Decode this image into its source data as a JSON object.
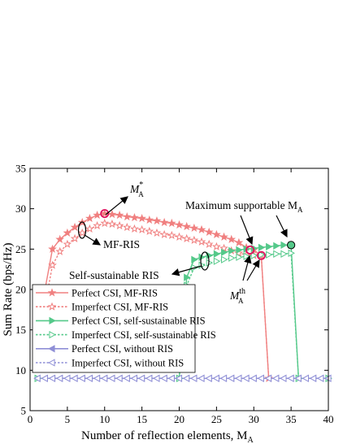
{
  "chart_data": {
    "type": "line",
    "xlabel": "Number of reflection elements, M",
    "xlabel_sub": "A",
    "ylabel": "Sum Rate (bps/Hz)",
    "xlim": [
      0,
      40
    ],
    "ylim": [
      5,
      35
    ],
    "xticks": [
      "0",
      "5",
      "10",
      "15",
      "20",
      "25",
      "30",
      "35",
      "40"
    ],
    "yticks": [
      "5",
      "10",
      "15",
      "20",
      "25",
      "30",
      "35"
    ],
    "legend_position": "left-middle",
    "series": [
      {
        "name": "Perfect CSI, MF-RIS",
        "color": "#f08080",
        "dash": false,
        "marker": "star",
        "points": [
          [
            1,
            13
          ],
          [
            2,
            20
          ],
          [
            3,
            25
          ],
          [
            4,
            26.2
          ],
          [
            5,
            27
          ],
          [
            6,
            27.7
          ],
          [
            7,
            28.3
          ],
          [
            8,
            28.8
          ],
          [
            9,
            29.2
          ],
          [
            10,
            29.4
          ],
          [
            11,
            29.3
          ],
          [
            12,
            29.2
          ],
          [
            13,
            29.0
          ],
          [
            14,
            28.9
          ],
          [
            15,
            28.8
          ],
          [
            16,
            28.6
          ],
          [
            17,
            28.5
          ],
          [
            18,
            28.3
          ],
          [
            19,
            28.2
          ],
          [
            20,
            28.0
          ],
          [
            21,
            27.8
          ],
          [
            22,
            27.6
          ],
          [
            23,
            27.4
          ],
          [
            24,
            27.1
          ],
          [
            25,
            26.8
          ],
          [
            26,
            26.5
          ],
          [
            27,
            26.2
          ],
          [
            28,
            25.8
          ],
          [
            29,
            25.2
          ],
          [
            30,
            24.9
          ],
          [
            31,
            24.2
          ],
          [
            32,
            9
          ]
        ]
      },
      {
        "name": "Imperfect CSI, MF-RIS",
        "color": "#f08080",
        "dash": true,
        "marker": "star-open",
        "points": [
          [
            1,
            12
          ],
          [
            2,
            18
          ],
          [
            3,
            23
          ],
          [
            4,
            24.7
          ],
          [
            5,
            25.6
          ],
          [
            6,
            26.3
          ],
          [
            7,
            27.0
          ],
          [
            8,
            27.5
          ],
          [
            9,
            27.9
          ],
          [
            10,
            28.2
          ],
          [
            11,
            28.1
          ],
          [
            12,
            27.9
          ],
          [
            13,
            27.7
          ],
          [
            14,
            27.5
          ],
          [
            15,
            27.4
          ],
          [
            16,
            27.2
          ],
          [
            17,
            27.0
          ],
          [
            18,
            26.8
          ],
          [
            19,
            26.7
          ],
          [
            20,
            26.5
          ],
          [
            21,
            26.3
          ],
          [
            22,
            26.1
          ],
          [
            23,
            25.9
          ],
          [
            24,
            25.6
          ],
          [
            25,
            25.3
          ],
          [
            26,
            25.1
          ],
          [
            27,
            24.8
          ],
          [
            28,
            24.5
          ],
          [
            29,
            24.3
          ],
          [
            30,
            24.2
          ],
          [
            31,
            24.2
          ],
          [
            32,
            9
          ]
        ]
      },
      {
        "name": "Perfect CSI, self-sustainable RIS",
        "color": "#55c98a",
        "dash": false,
        "marker": "triangle-right",
        "points": [
          [
            1,
            9
          ],
          [
            20,
            9
          ],
          [
            21,
            21.5
          ],
          [
            22,
            23.7
          ],
          [
            23,
            24.0
          ],
          [
            24,
            24.2
          ],
          [
            25,
            24.4
          ],
          [
            26,
            24.6
          ],
          [
            27,
            24.8
          ],
          [
            28,
            24.9
          ],
          [
            29,
            25.0
          ],
          [
            30,
            25.1
          ],
          [
            31,
            25.2
          ],
          [
            32,
            25.3
          ],
          [
            33,
            25.4
          ],
          [
            34,
            25.5
          ],
          [
            35,
            25.5
          ],
          [
            36,
            9
          ],
          [
            40,
            9
          ]
        ]
      },
      {
        "name": "Imperfect CSI, self-sustainable RIS",
        "color": "#55c98a",
        "dash": true,
        "marker": "triangle-right-open",
        "points": [
          [
            1,
            9
          ],
          [
            20,
            9
          ],
          [
            21,
            20.5
          ],
          [
            22,
            22.7
          ],
          [
            23,
            23.0
          ],
          [
            24,
            23.3
          ],
          [
            25,
            23.5
          ],
          [
            26,
            23.7
          ],
          [
            27,
            23.9
          ],
          [
            28,
            24.0
          ],
          [
            29,
            24.1
          ],
          [
            30,
            24.2
          ],
          [
            31,
            24.3
          ],
          [
            32,
            24.3
          ],
          [
            33,
            24.4
          ],
          [
            34,
            24.4
          ],
          [
            35,
            24.5
          ],
          [
            36,
            9
          ],
          [
            40,
            9
          ]
        ]
      },
      {
        "name": "Perfect CSI, without RIS",
        "color": "#8f8fd6",
        "dash": false,
        "marker": "triangle-left",
        "points": [
          [
            1,
            9
          ],
          [
            2,
            9
          ],
          [
            3,
            9
          ],
          [
            4,
            9
          ],
          [
            5,
            9
          ],
          [
            6,
            9
          ],
          [
            7,
            9
          ],
          [
            8,
            9
          ],
          [
            9,
            9
          ],
          [
            10,
            9
          ],
          [
            11,
            9
          ],
          [
            12,
            9
          ],
          [
            13,
            9
          ],
          [
            14,
            9
          ],
          [
            15,
            9
          ],
          [
            16,
            9
          ],
          [
            17,
            9
          ],
          [
            18,
            9
          ],
          [
            19,
            9
          ],
          [
            20,
            9
          ],
          [
            21,
            9
          ],
          [
            22,
            9
          ],
          [
            23,
            9
          ],
          [
            24,
            9
          ],
          [
            25,
            9
          ],
          [
            26,
            9
          ],
          [
            27,
            9
          ],
          [
            28,
            9
          ],
          [
            29,
            9
          ],
          [
            30,
            9
          ],
          [
            31,
            9
          ],
          [
            32,
            9
          ],
          [
            33,
            9
          ],
          [
            34,
            9
          ],
          [
            35,
            9
          ],
          [
            36,
            9
          ],
          [
            37,
            9
          ],
          [
            38,
            9
          ],
          [
            39,
            9
          ],
          [
            40,
            9
          ]
        ]
      },
      {
        "name": "Imperfect CSI, without RIS",
        "color": "#8f8fd6",
        "dash": true,
        "marker": "triangle-left-open",
        "points": [
          [
            1,
            9
          ],
          [
            2,
            9
          ],
          [
            3,
            9
          ],
          [
            4,
            9
          ],
          [
            5,
            9
          ],
          [
            6,
            9
          ],
          [
            7,
            9
          ],
          [
            8,
            9
          ],
          [
            9,
            9
          ],
          [
            10,
            9
          ],
          [
            11,
            9
          ],
          [
            12,
            9
          ],
          [
            13,
            9
          ],
          [
            14,
            9
          ],
          [
            15,
            9
          ],
          [
            16,
            9
          ],
          [
            17,
            9
          ],
          [
            18,
            9
          ],
          [
            19,
            9
          ],
          [
            20,
            9
          ],
          [
            21,
            9
          ],
          [
            22,
            9
          ],
          [
            23,
            9
          ],
          [
            24,
            9
          ],
          [
            25,
            9
          ],
          [
            26,
            9
          ],
          [
            27,
            9
          ],
          [
            28,
            9
          ],
          [
            29,
            9
          ],
          [
            30,
            9
          ],
          [
            31,
            9
          ],
          [
            32,
            9
          ],
          [
            33,
            9
          ],
          [
            34,
            9
          ],
          [
            35,
            9
          ],
          [
            36,
            9
          ],
          [
            37,
            9
          ],
          [
            38,
            9
          ],
          [
            39,
            9
          ],
          [
            40,
            9
          ]
        ]
      }
    ],
    "annotations": {
      "mstar": "M",
      "mstar_sub": "A",
      "mstar_sup": "*",
      "mfris": "MF-RIS",
      "maxsup": "Maximum supportable M",
      "maxsup_sub": "A",
      "selfsus": "Self-sustainable RIS",
      "mth": "M",
      "mth_sub": "A",
      "mth_sup": "th"
    },
    "highlights": [
      {
        "x": 10,
        "y": 29.4,
        "color": "#f08080"
      },
      {
        "x": 29.5,
        "y": 24.9,
        "color": "#f08080"
      },
      {
        "x": 31,
        "y": 24.2,
        "color": "#f08080"
      },
      {
        "x": 35,
        "y": 25.5,
        "color": "#55c98a"
      }
    ]
  }
}
